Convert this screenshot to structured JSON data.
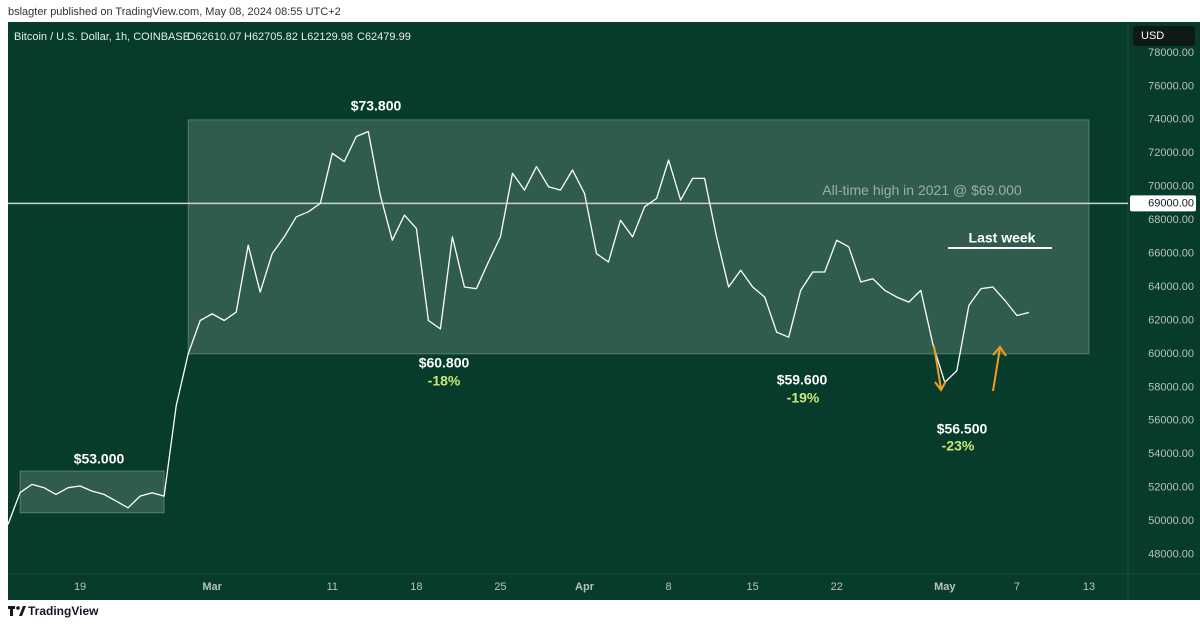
{
  "published_by": "bslagter published on TradingView.com, May 08, 2024 08:55 UTC+2",
  "footer": "TradingView",
  "chart_data": {
    "type": "line",
    "symbol": "Bitcoin / U.S. Dollar, 1h, COINBASE",
    "ohlc": [
      "O62610.07",
      "H62705.82",
      "L62129.98",
      "C62479.99"
    ],
    "currency": "USD",
    "x": [
      "2024-02-13",
      "2024-02-14",
      "2024-02-15",
      "2024-02-16",
      "2024-02-17",
      "2024-02-18",
      "2024-02-19",
      "2024-02-20",
      "2024-02-21",
      "2024-02-22",
      "2024-02-23",
      "2024-02-24",
      "2024-02-25",
      "2024-02-26",
      "2024-02-27",
      "2024-02-28",
      "2024-02-29",
      "2024-03-01",
      "2024-03-02",
      "2024-03-03",
      "2024-03-04",
      "2024-03-05",
      "2024-03-06",
      "2024-03-07",
      "2024-03-08",
      "2024-03-09",
      "2024-03-10",
      "2024-03-11",
      "2024-03-12",
      "2024-03-13",
      "2024-03-14",
      "2024-03-15",
      "2024-03-16",
      "2024-03-17",
      "2024-03-18",
      "2024-03-19",
      "2024-03-20",
      "2024-03-21",
      "2024-03-22",
      "2024-03-23",
      "2024-03-24",
      "2024-03-25",
      "2024-03-26",
      "2024-03-27",
      "2024-03-28",
      "2024-03-29",
      "2024-03-30",
      "2024-03-31",
      "2024-04-01",
      "2024-04-02",
      "2024-04-03",
      "2024-04-04",
      "2024-04-05",
      "2024-04-06",
      "2024-04-07",
      "2024-04-08",
      "2024-04-09",
      "2024-04-10",
      "2024-04-11",
      "2024-04-12",
      "2024-04-13",
      "2024-04-14",
      "2024-04-15",
      "2024-04-16",
      "2024-04-17",
      "2024-04-18",
      "2024-04-19",
      "2024-04-20",
      "2024-04-21",
      "2024-04-22",
      "2024-04-23",
      "2024-04-24",
      "2024-04-25",
      "2024-04-26",
      "2024-04-27",
      "2024-04-28",
      "2024-04-29",
      "2024-04-30",
      "2024-05-01",
      "2024-05-02",
      "2024-05-03",
      "2024-05-04",
      "2024-05-05",
      "2024-05-06",
      "2024-05-07",
      "2024-05-08"
    ],
    "series": [
      {
        "name": "BTCUSD",
        "color": "#ffffff",
        "values": [
          49800,
          51700,
          52200,
          52000,
          51600,
          52000,
          52100,
          51800,
          51600,
          51200,
          50800,
          51500,
          51700,
          51500,
          56900,
          60000,
          62000,
          62400,
          62000,
          62500,
          66500,
          63700,
          66000,
          67000,
          68200,
          68500,
          69000,
          72000,
          71500,
          73000,
          73300,
          69500,
          66800,
          68300,
          67500,
          62000,
          61500,
          67000,
          64000,
          63900,
          65500,
          67000,
          70800,
          69800,
          71200,
          70000,
          69800,
          71000,
          69600,
          66000,
          65500,
          68000,
          67000,
          68800,
          69300,
          71600,
          69200,
          70500,
          70500,
          67000,
          64000,
          65000,
          64000,
          63400,
          61300,
          61000,
          63800,
          64900,
          64900,
          66800,
          66400,
          64300,
          64500,
          63800,
          63400,
          63100,
          63800,
          60600,
          58300,
          59000,
          62900,
          63900,
          64000,
          63200,
          62300,
          62480
        ]
      }
    ],
    "xlim": [
      "2024-02-13",
      "2024-05-16"
    ],
    "ylim": [
      46900,
      79850
    ],
    "xticks": [
      {
        "value": "2024-02-19",
        "label": "19"
      },
      {
        "value": "2024-03-01",
        "label": "Mar"
      },
      {
        "value": "2024-03-11",
        "label": "11"
      },
      {
        "value": "2024-03-18",
        "label": "18"
      },
      {
        "value": "2024-03-25",
        "label": "25"
      },
      {
        "value": "2024-04-01",
        "label": "Apr"
      },
      {
        "value": "2024-04-08",
        "label": "8"
      },
      {
        "value": "2024-04-15",
        "label": "15"
      },
      {
        "value": "2024-04-22",
        "label": "22"
      },
      {
        "value": "2024-05-01",
        "label": "May"
      },
      {
        "value": "2024-05-07",
        "label": "7"
      },
      {
        "value": "2024-05-13",
        "label": "13"
      }
    ],
    "yticks": [
      {
        "value": 48000,
        "label": "48000.00"
      },
      {
        "value": 50000,
        "label": "50000.00"
      },
      {
        "value": 52000,
        "label": "52000.00"
      },
      {
        "value": 54000,
        "label": "54000.00"
      },
      {
        "value": 56000,
        "label": "56000.00"
      },
      {
        "value": 58000,
        "label": "58000.00"
      },
      {
        "value": 60000,
        "label": "60000.00"
      },
      {
        "value": 62000,
        "label": "62000.00"
      },
      {
        "value": 64000,
        "label": "64000.00"
      },
      {
        "value": 66000,
        "label": "66000.00"
      },
      {
        "value": 68000,
        "label": "68000.00"
      },
      {
        "value": 70000,
        "label": "70000.00"
      },
      {
        "value": 72000,
        "label": "72000.00"
      },
      {
        "value": 74000,
        "label": "74000.00"
      },
      {
        "value": 76000,
        "label": "76000.00"
      },
      {
        "value": 78000,
        "label": "78000.00"
      }
    ],
    "grid": false,
    "reference_line": {
      "value": 69000,
      "label": "All-time high in 2021 @ $69.000",
      "price_label": "69000.00"
    },
    "zones": [
      {
        "from": "2024-02-14",
        "to": "2024-02-26",
        "low": 50500,
        "high": 53000
      },
      {
        "from": "2024-02-28",
        "to": "2024-05-13",
        "low": 60000,
        "high": 74000
      }
    ],
    "annotations": [
      "$73.800",
      "$60.800",
      "-18%",
      "$59.600",
      "-19%",
      "$56.500",
      "-23%",
      "$53.000",
      "Last week"
    ]
  }
}
